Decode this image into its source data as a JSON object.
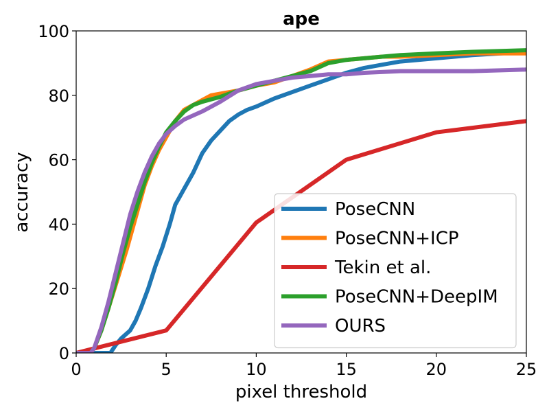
{
  "chart_data": {
    "type": "line",
    "title": "ape",
    "xlabel": "pixel threshold",
    "ylabel": "accuracy",
    "xlim": [
      0,
      25
    ],
    "ylim": [
      0,
      100
    ],
    "xticks": [
      0,
      5,
      10,
      15,
      20,
      25
    ],
    "yticks": [
      0,
      20,
      40,
      60,
      80,
      100
    ],
    "grid": false,
    "legend_position": "lower-right",
    "series": [
      {
        "name": "PoseCNN",
        "color": "#1f77b4",
        "points": [
          [
            0,
            0
          ],
          [
            1.9,
            0
          ],
          [
            2.2,
            2.5
          ],
          [
            2.5,
            4.5
          ],
          [
            3,
            7
          ],
          [
            3.3,
            10
          ],
          [
            3.6,
            14
          ],
          [
            4,
            20
          ],
          [
            4.4,
            27
          ],
          [
            4.8,
            33
          ],
          [
            5.2,
            40
          ],
          [
            5.5,
            46
          ],
          [
            6,
            51
          ],
          [
            6.5,
            56
          ],
          [
            7,
            62
          ],
          [
            7.5,
            66
          ],
          [
            8,
            69
          ],
          [
            8.5,
            72
          ],
          [
            9,
            74
          ],
          [
            9.5,
            75.5
          ],
          [
            10,
            76.5
          ],
          [
            11,
            79
          ],
          [
            12,
            81
          ],
          [
            13,
            83
          ],
          [
            14,
            85
          ],
          [
            15,
            87
          ],
          [
            16,
            88.5
          ],
          [
            17,
            89.5
          ],
          [
            18,
            90.5
          ],
          [
            20,
            91.5
          ],
          [
            22,
            92.5
          ],
          [
            25,
            93.5
          ]
        ]
      },
      {
        "name": "PoseCNN+ICP",
        "color": "#ff7f0e",
        "points": [
          [
            0,
            0
          ],
          [
            0.8,
            0
          ],
          [
            1,
            1.5
          ],
          [
            1.4,
            7
          ],
          [
            1.8,
            14
          ],
          [
            2.3,
            23
          ],
          [
            2.8,
            32
          ],
          [
            3.2,
            40
          ],
          [
            3.5,
            46
          ],
          [
            3.8,
            52
          ],
          [
            4.2,
            58
          ],
          [
            4.6,
            63
          ],
          [
            5,
            67
          ],
          [
            5.5,
            72
          ],
          [
            6,
            75.5
          ],
          [
            6.5,
            77
          ],
          [
            7,
            78.5
          ],
          [
            7.5,
            80
          ],
          [
            8,
            80.5
          ],
          [
            9,
            81.5
          ],
          [
            10,
            83
          ],
          [
            11,
            84
          ],
          [
            12,
            86
          ],
          [
            13,
            88
          ],
          [
            14,
            90.5
          ],
          [
            15,
            91
          ],
          [
            16,
            91.5
          ],
          [
            17,
            92
          ],
          [
            18,
            92
          ],
          [
            20,
            92.5
          ],
          [
            22,
            93
          ],
          [
            25,
            93
          ]
        ]
      },
      {
        "name": "Tekin et al.",
        "color": "#d62728",
        "points": [
          [
            0,
            0
          ],
          [
            5,
            7
          ],
          [
            10,
            40.5
          ],
          [
            15,
            60
          ],
          [
            20,
            68.5
          ],
          [
            25,
            72
          ]
        ]
      },
      {
        "name": "PoseCNN+DeepIM",
        "color": "#2ca02c",
        "points": [
          [
            0,
            0
          ],
          [
            0.8,
            0
          ],
          [
            1,
            1.5
          ],
          [
            1.4,
            7
          ],
          [
            1.8,
            14
          ],
          [
            2.2,
            22
          ],
          [
            2.6,
            31
          ],
          [
            3,
            39
          ],
          [
            3.4,
            46
          ],
          [
            3.8,
            53
          ],
          [
            4.2,
            59
          ],
          [
            4.6,
            64
          ],
          [
            5,
            68.5
          ],
          [
            5.5,
            72
          ],
          [
            6,
            75
          ],
          [
            6.5,
            77
          ],
          [
            7,
            78
          ],
          [
            8,
            79.5
          ],
          [
            9,
            81.5
          ],
          [
            10,
            83
          ],
          [
            11,
            84.5
          ],
          [
            12,
            86
          ],
          [
            13,
            87.5
          ],
          [
            14,
            90
          ],
          [
            15,
            91
          ],
          [
            16,
            91.5
          ],
          [
            17,
            92
          ],
          [
            18,
            92.5
          ],
          [
            20,
            93
          ],
          [
            22,
            93.5
          ],
          [
            25,
            94
          ]
        ]
      },
      {
        "name": "OURS",
        "color": "#9467bd",
        "points": [
          [
            0,
            0
          ],
          [
            0.8,
            0
          ],
          [
            1,
            1.5
          ],
          [
            1.4,
            8
          ],
          [
            1.8,
            16
          ],
          [
            2.2,
            25
          ],
          [
            2.6,
            34
          ],
          [
            3,
            43
          ],
          [
            3.4,
            50
          ],
          [
            3.8,
            56
          ],
          [
            4.2,
            61
          ],
          [
            4.6,
            65
          ],
          [
            5,
            68
          ],
          [
            5.5,
            70.5
          ],
          [
            6,
            72.5
          ],
          [
            7,
            75
          ],
          [
            8,
            78
          ],
          [
            9,
            81.5
          ],
          [
            10,
            83.5
          ],
          [
            11,
            84.5
          ],
          [
            12,
            85.5
          ],
          [
            13,
            86
          ],
          [
            14,
            86.5
          ],
          [
            15,
            86.5
          ],
          [
            16,
            87
          ],
          [
            18,
            87.5
          ],
          [
            20,
            87.5
          ],
          [
            22,
            87.5
          ],
          [
            25,
            88
          ]
        ]
      }
    ]
  }
}
